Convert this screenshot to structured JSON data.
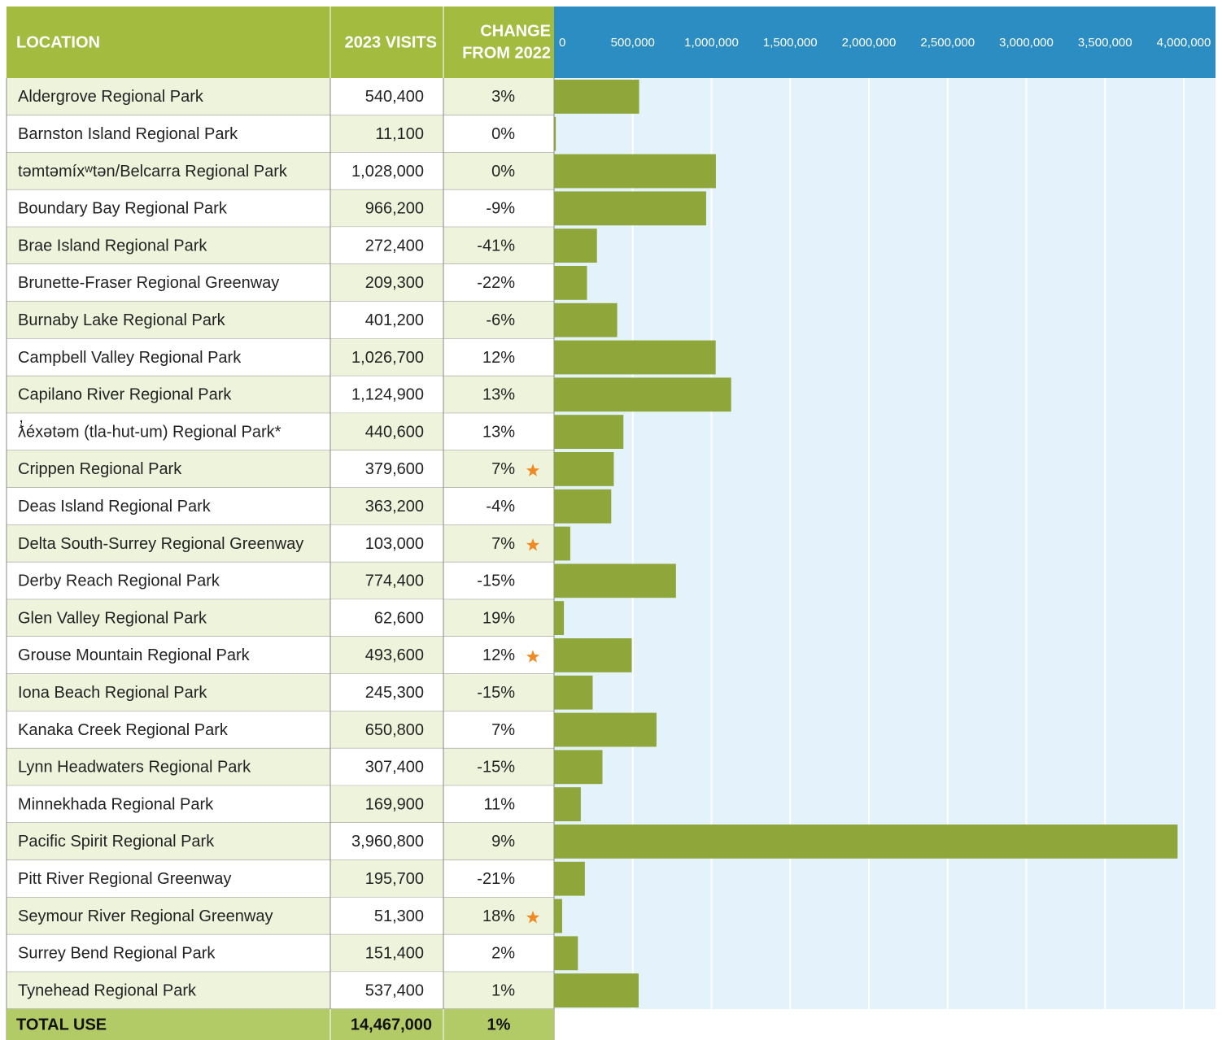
{
  "table": {
    "headers": [
      "LOCATION",
      "2023 VISITS"
    ],
    "change_header": [
      "CHANGE",
      "FROM 2022"
    ],
    "change": [
      "3%",
      "0%",
      "0%",
      "-9%",
      "-41%",
      "-22%",
      "-6%",
      "12%",
      "13%",
      "13%",
      "7%",
      "-4%",
      "7%",
      "-15%",
      "19%",
      "12%",
      "-15%",
      "7%",
      "-15%",
      "11%",
      "9%",
      "-21%",
      "18%",
      "2%",
      "1%"
    ],
    "starred": [
      false,
      false,
      false,
      false,
      false,
      false,
      false,
      false,
      false,
      false,
      true,
      false,
      true,
      false,
      false,
      true,
      false,
      false,
      false,
      false,
      false,
      false,
      true,
      false,
      false
    ],
    "total": {
      "label": "TOTAL USE",
      "visits": "14,467,000",
      "change": "1%"
    }
  },
  "chart_data": {
    "type": "hbar",
    "categories": [
      "Aldergrove Regional Park",
      "Barnston Island Regional Park",
      "təmtəmíxʷtən/Belcarra Regional Park",
      "Boundary Bay Regional Park",
      "Brae Island Regional Park",
      "Brunette-Fraser Regional Greenway",
      "Burnaby Lake Regional Park",
      "Campbell Valley Regional Park",
      "Capilano River Regional Park",
      "ƛ̓éxətəm (tla-hut-um) Regional Park*",
      "Crippen Regional Park",
      "Deas Island Regional Park",
      "Delta South-Surrey Regional Greenway",
      "Derby Reach Regional Park",
      "Glen Valley Regional Park",
      "Grouse Mountain Regional Park",
      "Iona Beach Regional Park",
      "Kanaka Creek Regional Park",
      "Lynn Headwaters Regional Park",
      "Minnekhada Regional Park",
      "Pacific Spirit Regional Park",
      "Pitt River Regional Greenway",
      "Seymour River Regional Greenway",
      "Surrey Bend Regional Park",
      "Tynehead Regional Park"
    ],
    "values": [
      540400,
      11100,
      1028000,
      966200,
      272400,
      209300,
      401200,
      1026700,
      1124900,
      440600,
      379600,
      363200,
      103000,
      774400,
      62600,
      493600,
      245300,
      650800,
      307400,
      169900,
      3960800,
      195700,
      51300,
      151400,
      537400
    ],
    "value_labels": [
      "540,400",
      "11,100",
      "1,028,000",
      "966,200",
      "272,400",
      "209,300",
      "401,200",
      "1,026,700",
      "1,124,900",
      "440,600",
      "379,600",
      "363,200",
      "103,000",
      "774,400",
      "62,600",
      "493,600",
      "245,300",
      "650,800",
      "307,400",
      "169,900",
      "3,960,800",
      "195,700",
      "51,300",
      "151,400",
      "537,400"
    ],
    "color": "#8ea63a",
    "xlim": [
      0,
      4000000
    ],
    "xticks": [
      0,
      {
        "value": 500000,
        "label": "500,000"
      },
      {
        "value": 1000000,
        "label": "1,000,000"
      },
      {
        "value": 1500000,
        "label": "1,500,000"
      },
      {
        "value": 2000000,
        "label": "2,000,000"
      },
      {
        "value": 2500000,
        "label": "2,500,000"
      },
      {
        "value": 3000000,
        "label": "3,000,000"
      },
      {
        "value": 3500000,
        "label": "3,500,000"
      },
      {
        "value": 4000000,
        "label": "4,000,000"
      }
    ],
    "grid": true
  }
}
